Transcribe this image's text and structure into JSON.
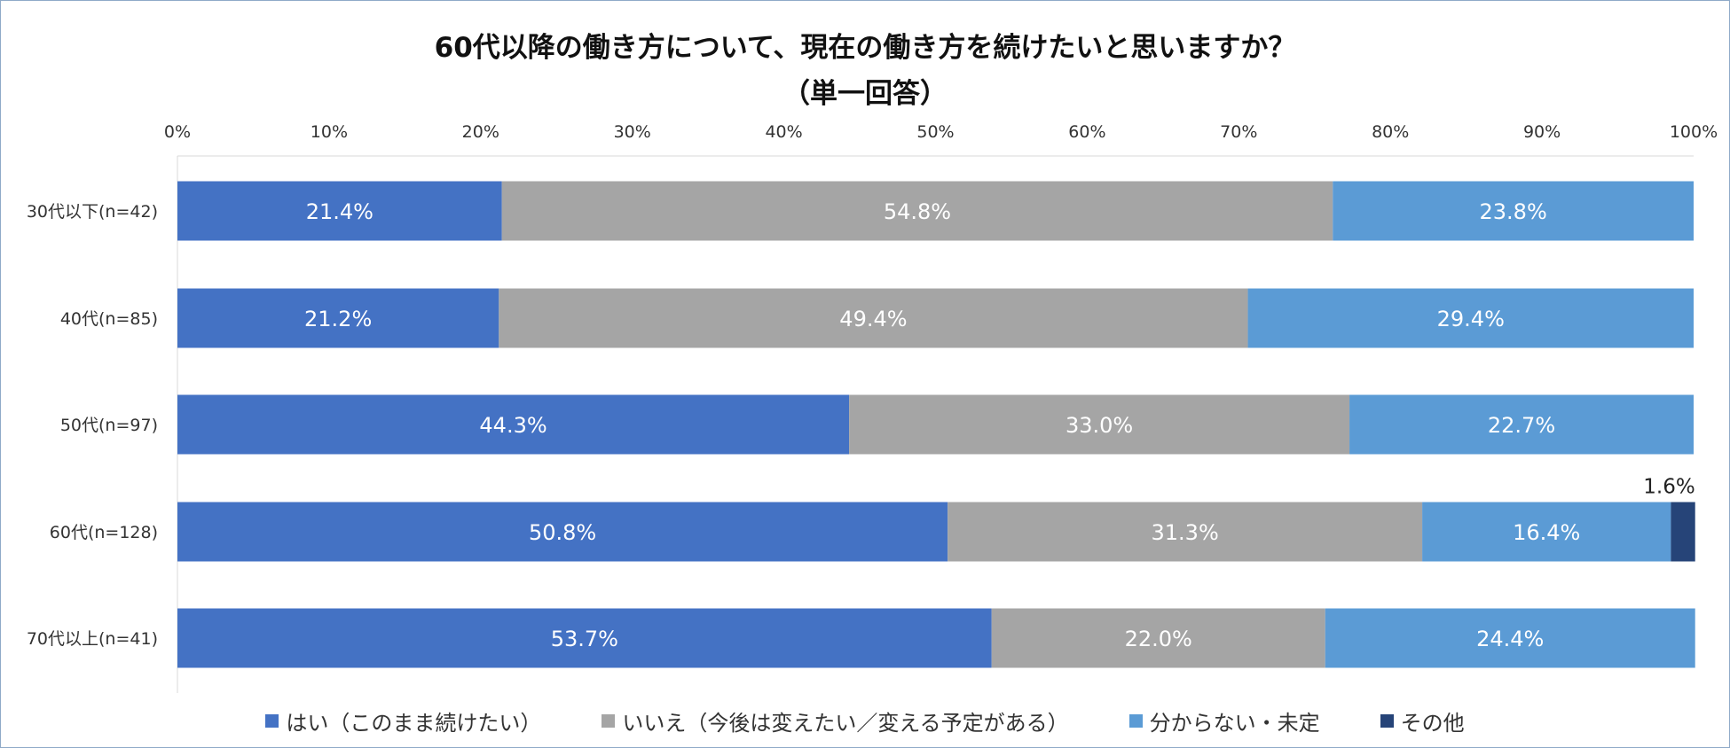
{
  "chart_data": {
    "type": "bar",
    "orientation": "horizontal",
    "stacked": true,
    "title": "60代以降の働き方について、現在の働き方を続けたいと思いますか？",
    "subtitle": "（単一回答）",
    "xlim": [
      0,
      100
    ],
    "x_ticks": [
      "0%",
      "10%",
      "20%",
      "30%",
      "40%",
      "50%",
      "60%",
      "70%",
      "80%",
      "90%",
      "100%"
    ],
    "categories": [
      "30代以下(n=42)",
      "40代(n=85)",
      "50代(n=97)",
      "60代(n=128)",
      "70代以上(n=41)"
    ],
    "series": [
      {
        "name": "はい（このまま続けたい）",
        "color": "#4472c4",
        "values": [
          21.4,
          21.2,
          44.3,
          50.8,
          53.7
        ],
        "labels": [
          "21.4%",
          "21.2%",
          "44.3%",
          "50.8%",
          "53.7%"
        ]
      },
      {
        "name": "いいえ（今後は変えたい／変える予定がある）",
        "color": "#a5a5a5",
        "values": [
          54.8,
          49.4,
          33.0,
          31.3,
          22.0
        ],
        "labels": [
          "54.8%",
          "49.4%",
          "33.0%",
          "31.3%",
          "22.0%"
        ]
      },
      {
        "name": "分からない・未定",
        "color": "#5b9bd5",
        "values": [
          23.8,
          29.4,
          22.7,
          16.4,
          24.4
        ],
        "labels": [
          "23.8%",
          "29.4%",
          "22.7%",
          "16.4%",
          "24.4%"
        ]
      },
      {
        "name": "その他",
        "color": "#264478",
        "values": [
          0,
          0,
          0,
          1.6,
          0
        ],
        "labels": [
          "",
          "",
          "",
          "1.6%",
          ""
        ]
      }
    ],
    "legend_position": "bottom",
    "grid": false
  }
}
